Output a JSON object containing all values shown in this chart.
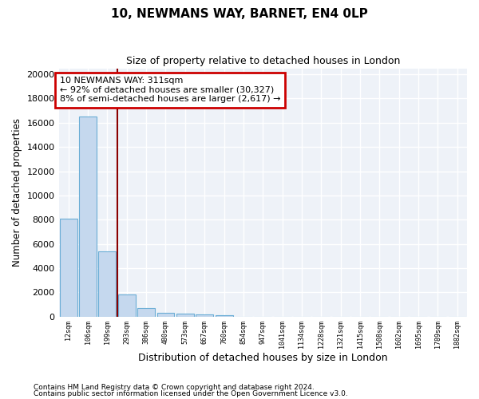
{
  "title1": "10, NEWMANS WAY, BARNET, EN4 0LP",
  "title2": "Size of property relative to detached houses in London",
  "xlabel": "Distribution of detached houses by size in London",
  "ylabel": "Number of detached properties",
  "bin_labels": [
    "12sqm",
    "106sqm",
    "199sqm",
    "293sqm",
    "386sqm",
    "480sqm",
    "573sqm",
    "667sqm",
    "760sqm",
    "854sqm",
    "947sqm",
    "1041sqm",
    "1134sqm",
    "1228sqm",
    "1321sqm",
    "1415sqm",
    "1508sqm",
    "1602sqm",
    "1695sqm",
    "1789sqm",
    "1882sqm"
  ],
  "bar_heights": [
    8100,
    16500,
    5350,
    1850,
    700,
    310,
    210,
    185,
    130,
    0,
    0,
    0,
    0,
    0,
    0,
    0,
    0,
    0,
    0,
    0,
    0
  ],
  "bar_color": "#c5d8ee",
  "bar_edge_color": "#6aadd5",
  "ylim": [
    0,
    20500
  ],
  "yticks": [
    0,
    2000,
    4000,
    6000,
    8000,
    10000,
    12000,
    14000,
    16000,
    18000,
    20000
  ],
  "red_line_color": "#8b0000",
  "annotation_text": "10 NEWMANS WAY: 311sqm\n← 92% of detached houses are smaller (30,327)\n8% of semi-detached houses are larger (2,617) →",
  "annotation_box_color": "#ffffff",
  "annotation_border_color": "#cc0000",
  "footer1": "Contains HM Land Registry data © Crown copyright and database right 2024.",
  "footer2": "Contains public sector information licensed under the Open Government Licence v3.0.",
  "background_color": "#eef2f8",
  "grid_color": "#d0d8e8"
}
